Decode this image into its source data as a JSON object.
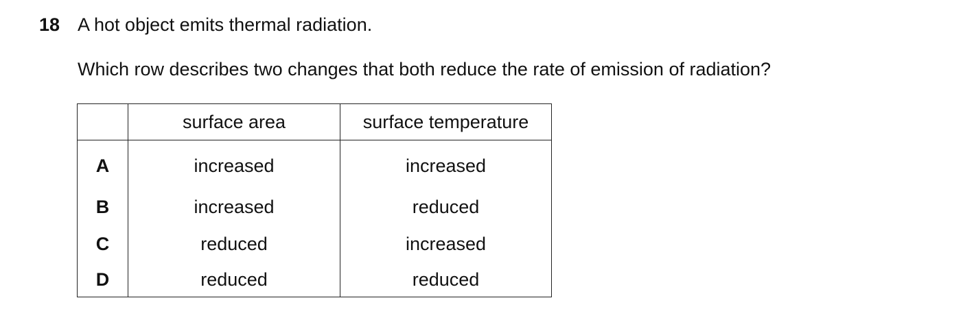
{
  "question": {
    "number": "18",
    "stem": "A hot object emits thermal radiation.",
    "prompt": "Which row describes two changes that both reduce the rate of emission of radiation?"
  },
  "table": {
    "headers": [
      "",
      "surface area",
      "surface temperature"
    ],
    "rows": [
      {
        "letter": "A",
        "area": "increased",
        "temperature": "increased"
      },
      {
        "letter": "B",
        "area": "increased",
        "temperature": "reduced"
      },
      {
        "letter": "C",
        "area": "reduced",
        "temperature": "increased"
      },
      {
        "letter": "D",
        "area": "reduced",
        "temperature": "reduced"
      }
    ]
  }
}
